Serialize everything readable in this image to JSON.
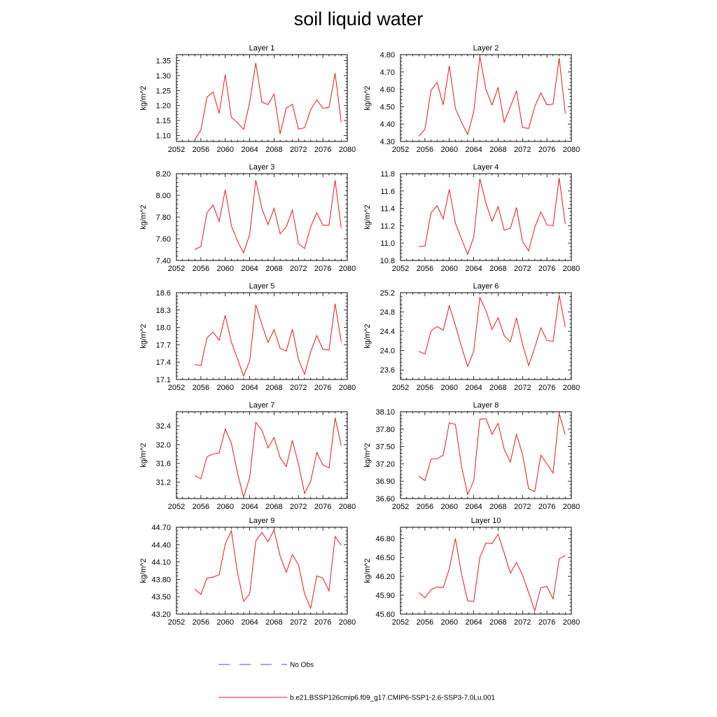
{
  "title": "soil liquid water",
  "colors": {
    "series": "#e41a1c",
    "obs": "#4a52c8",
    "axis": "#000000"
  },
  "legend": {
    "obs_label": "No Obs",
    "series_label": "b.e21.BSSP126cmip6.f09_g17.CMIP6-SSP1-2.6-SSP3-7.0Lu.001"
  },
  "chart_data": [
    {
      "type": "line",
      "title": "Layer 1",
      "ylabel": "kg/m^2",
      "xlim": [
        2052,
        2080
      ],
      "xticks": [
        "2052",
        "2056",
        "2060",
        "2064",
        "2068",
        "2072",
        "2076",
        "2080"
      ],
      "ylim": [
        1.08,
        1.37
      ],
      "yticks": [
        "1.10",
        "1.15",
        "1.20",
        "1.25",
        "1.30",
        "1.35"
      ],
      "x": [
        2055,
        2056,
        2057,
        2058,
        2059,
        2060,
        2061,
        2062,
        2063,
        2064,
        2065,
        2066,
        2067,
        2068,
        2069,
        2070,
        2071,
        2072,
        2073,
        2074,
        2075,
        2076,
        2077,
        2078,
        2079
      ],
      "series": [
        {
          "values": [
            1.085,
            1.118,
            1.228,
            1.245,
            1.173,
            1.303,
            1.16,
            1.143,
            1.12,
            1.21,
            1.342,
            1.212,
            1.203,
            1.238,
            1.105,
            1.192,
            1.204,
            1.121,
            1.126,
            1.186,
            1.219,
            1.191,
            1.194,
            1.308,
            1.144
          ]
        }
      ]
    },
    {
      "type": "line",
      "title": "Layer 2",
      "ylabel": "kg/m^2",
      "xlim": [
        2052,
        2080
      ],
      "xticks": [
        "2052",
        "2056",
        "2060",
        "2064",
        "2068",
        "2072",
        "2076",
        "2080"
      ],
      "ylim": [
        4.3,
        4.8
      ],
      "yticks": [
        "4.30",
        "4.40",
        "4.50",
        "4.60",
        "4.70",
        "4.80"
      ],
      "x": [
        2055,
        2056,
        2057,
        2058,
        2059,
        2060,
        2061,
        2062,
        2063,
        2064,
        2065,
        2066,
        2067,
        2068,
        2069,
        2070,
        2071,
        2072,
        2073,
        2074,
        2075,
        2076,
        2077,
        2078,
        2079
      ],
      "series": [
        {
          "values": [
            4.33,
            4.37,
            4.595,
            4.64,
            4.51,
            4.735,
            4.49,
            4.41,
            4.34,
            4.47,
            4.79,
            4.6,
            4.51,
            4.61,
            4.41,
            4.5,
            4.59,
            4.38,
            4.375,
            4.5,
            4.58,
            4.51,
            4.515,
            4.78,
            4.46
          ]
        }
      ]
    },
    {
      "type": "line",
      "title": "Layer 3",
      "ylabel": "kg/m^2",
      "xlim": [
        2052,
        2080
      ],
      "xticks": [
        "2052",
        "2056",
        "2060",
        "2064",
        "2068",
        "2072",
        "2076",
        "2080"
      ],
      "ylim": [
        7.4,
        8.2
      ],
      "yticks": [
        "7.40",
        "7.60",
        "7.80",
        "8.00",
        "8.20"
      ],
      "x": [
        2055,
        2056,
        2057,
        2058,
        2059,
        2060,
        2061,
        2062,
        2063,
        2064,
        2065,
        2066,
        2067,
        2068,
        2069,
        2070,
        2071,
        2072,
        2073,
        2074,
        2075,
        2076,
        2077,
        2078,
        2079
      ],
      "series": [
        {
          "values": [
            7.5,
            7.53,
            7.84,
            7.91,
            7.76,
            8.05,
            7.72,
            7.58,
            7.47,
            7.64,
            8.14,
            7.88,
            7.73,
            7.88,
            7.645,
            7.71,
            7.865,
            7.555,
            7.51,
            7.71,
            7.84,
            7.725,
            7.725,
            8.14,
            7.7
          ]
        }
      ]
    },
    {
      "type": "line",
      "title": "Layer 4",
      "ylabel": "kg/m^2",
      "xlim": [
        2052,
        2080
      ],
      "xticks": [
        "2052",
        "2056",
        "2060",
        "2064",
        "2068",
        "2072",
        "2076",
        "2080"
      ],
      "ylim": [
        10.8,
        11.8
      ],
      "yticks": [
        "10.8",
        "11.0",
        "11.2",
        "11.4",
        "11.6",
        "11.8"
      ],
      "x": [
        2055,
        2056,
        2057,
        2058,
        2059,
        2060,
        2061,
        2062,
        2063,
        2064,
        2065,
        2066,
        2067,
        2068,
        2069,
        2070,
        2071,
        2072,
        2073,
        2074,
        2075,
        2076,
        2077,
        2078,
        2079
      ],
      "series": [
        {
          "values": [
            10.96,
            10.965,
            11.35,
            11.43,
            11.28,
            11.62,
            11.23,
            11.05,
            10.87,
            11.07,
            11.74,
            11.46,
            11.25,
            11.42,
            11.15,
            11.17,
            11.41,
            11.02,
            10.91,
            11.18,
            11.36,
            11.21,
            11.2,
            11.75,
            11.22
          ]
        }
      ]
    },
    {
      "type": "line",
      "title": "Layer 5",
      "ylabel": "kg/m^2",
      "xlim": [
        2052,
        2080
      ],
      "xticks": [
        "2052",
        "2056",
        "2060",
        "2064",
        "2068",
        "2072",
        "2076",
        "2080"
      ],
      "ylim": [
        17.1,
        18.6
      ],
      "yticks": [
        "17.1",
        "17.4",
        "17.7",
        "18.0",
        "18.3",
        "18.6"
      ],
      "x": [
        2055,
        2056,
        2057,
        2058,
        2059,
        2060,
        2061,
        2062,
        2063,
        2064,
        2065,
        2066,
        2067,
        2068,
        2069,
        2070,
        2071,
        2072,
        2073,
        2074,
        2075,
        2076,
        2077,
        2078,
        2079
      ],
      "series": [
        {
          "values": [
            17.36,
            17.34,
            17.82,
            17.92,
            17.78,
            18.21,
            17.75,
            17.46,
            17.16,
            17.42,
            18.39,
            18.05,
            17.74,
            17.96,
            17.64,
            17.59,
            17.97,
            17.45,
            17.19,
            17.58,
            17.86,
            17.62,
            17.61,
            18.41,
            17.75
          ]
        }
      ]
    },
    {
      "type": "line",
      "title": "Layer 6",
      "ylabel": "kg/m^2",
      "xlim": [
        2052,
        2080
      ],
      "xticks": [
        "2052",
        "2056",
        "2060",
        "2064",
        "2068",
        "2072",
        "2076",
        "2080"
      ],
      "ylim": [
        23.4,
        25.2
      ],
      "yticks": [
        "23.6",
        "24.0",
        "24.4",
        "24.8",
        "25.2"
      ],
      "x": [
        2055,
        2056,
        2057,
        2058,
        2059,
        2060,
        2061,
        2062,
        2063,
        2064,
        2065,
        2066,
        2067,
        2068,
        2069,
        2070,
        2071,
        2072,
        2073,
        2074,
        2075,
        2076,
        2077,
        2078,
        2079
      ],
      "series": [
        {
          "values": [
            23.98,
            23.93,
            24.41,
            24.5,
            24.42,
            24.93,
            24.52,
            24.08,
            23.67,
            23.99,
            25.1,
            24.83,
            24.44,
            24.68,
            24.31,
            24.18,
            24.68,
            24.13,
            23.69,
            24.06,
            24.47,
            24.21,
            24.19,
            25.15,
            24.49
          ]
        }
      ]
    },
    {
      "type": "line",
      "title": "Layer 7",
      "ylabel": "kg/m^2",
      "xlim": [
        2052,
        2080
      ],
      "xticks": [
        "2052",
        "2056",
        "2060",
        "2064",
        "2068",
        "2072",
        "2076",
        "2080"
      ],
      "ylim": [
        30.85,
        32.7
      ],
      "yticks": [
        "31.2",
        "31.6",
        "32.0",
        "32.4"
      ],
      "x": [
        2055,
        2056,
        2057,
        2058,
        2059,
        2060,
        2061,
        2062,
        2063,
        2064,
        2065,
        2066,
        2067,
        2068,
        2069,
        2070,
        2071,
        2072,
        2073,
        2074,
        2075,
        2076,
        2077,
        2078,
        2079
      ],
      "series": [
        {
          "values": [
            31.34,
            31.27,
            31.74,
            31.8,
            31.82,
            32.33,
            32.03,
            31.4,
            30.88,
            31.3,
            32.47,
            32.31,
            31.93,
            32.15,
            31.72,
            31.53,
            32.09,
            31.58,
            30.96,
            31.22,
            31.83,
            31.57,
            31.5,
            32.57,
            31.98
          ]
        }
      ]
    },
    {
      "type": "line",
      "title": "Layer 8",
      "ylabel": "kg/m^2",
      "xlim": [
        2052,
        2080
      ],
      "xticks": [
        "2052",
        "2056",
        "2060",
        "2064",
        "2068",
        "2072",
        "2076",
        "2080"
      ],
      "ylim": [
        36.6,
        38.1
      ],
      "yticks": [
        "36.60",
        "36.90",
        "37.20",
        "37.50",
        "37.80",
        "38.10"
      ],
      "x": [
        2055,
        2056,
        2057,
        2058,
        2059,
        2060,
        2061,
        2062,
        2063,
        2064,
        2065,
        2066,
        2067,
        2068,
        2069,
        2070,
        2071,
        2072,
        2073,
        2074,
        2075,
        2076,
        2077,
        2078,
        2079
      ],
      "series": [
        {
          "values": [
            36.99,
            36.91,
            37.28,
            37.29,
            37.35,
            37.91,
            37.88,
            37.16,
            36.67,
            36.91,
            37.97,
            37.98,
            37.71,
            37.9,
            37.45,
            37.23,
            37.71,
            37.36,
            36.77,
            36.72,
            37.35,
            37.2,
            37.04,
            38.07,
            37.7
          ]
        }
      ]
    },
    {
      "type": "line",
      "title": "Layer 9",
      "ylabel": "kg/m^2",
      "xlim": [
        2052,
        2080
      ],
      "xticks": [
        "2052",
        "2056",
        "2060",
        "2064",
        "2068",
        "2072",
        "2076",
        "2080"
      ],
      "ylim": [
        43.2,
        44.7
      ],
      "yticks": [
        "43.20",
        "43.50",
        "43.80",
        "44.10",
        "44.40",
        "44.70"
      ],
      "x": [
        2055,
        2056,
        2057,
        2058,
        2059,
        2060,
        2061,
        2062,
        2063,
        2064,
        2065,
        2066,
        2067,
        2068,
        2069,
        2070,
        2071,
        2072,
        2073,
        2074,
        2075,
        2076,
        2077,
        2078,
        2079
      ],
      "series": [
        {
          "values": [
            43.63,
            43.54,
            43.82,
            43.84,
            43.88,
            44.41,
            44.64,
            43.92,
            43.42,
            43.55,
            44.46,
            44.61,
            44.45,
            44.65,
            44.2,
            43.92,
            44.23,
            44.05,
            43.55,
            43.3,
            43.86,
            43.82,
            43.6,
            44.54,
            44.39
          ]
        }
      ]
    },
    {
      "type": "line",
      "title": "Layer 10",
      "ylabel": "kg/m^2",
      "xlim": [
        2052,
        2080
      ],
      "xticks": [
        "2052",
        "2056",
        "2060",
        "2064",
        "2068",
        "2072",
        "2076",
        "2080"
      ],
      "ylim": [
        45.6,
        46.98
      ],
      "yticks": [
        "45.60",
        "45.90",
        "46.20",
        "46.50",
        "46.80"
      ],
      "x": [
        2055,
        2056,
        2057,
        2058,
        2059,
        2060,
        2061,
        2062,
        2063,
        2064,
        2065,
        2066,
        2067,
        2068,
        2069,
        2070,
        2071,
        2072,
        2073,
        2074,
        2075,
        2076,
        2077,
        2078,
        2079
      ],
      "series": [
        {
          "values": [
            45.94,
            45.86,
            45.99,
            46.03,
            46.02,
            46.32,
            46.8,
            46.24,
            45.81,
            45.8,
            46.5,
            46.73,
            46.72,
            46.87,
            46.57,
            46.25,
            46.42,
            46.22,
            45.94,
            45.65,
            46.02,
            46.04,
            45.84,
            46.48,
            46.53
          ]
        }
      ]
    }
  ]
}
